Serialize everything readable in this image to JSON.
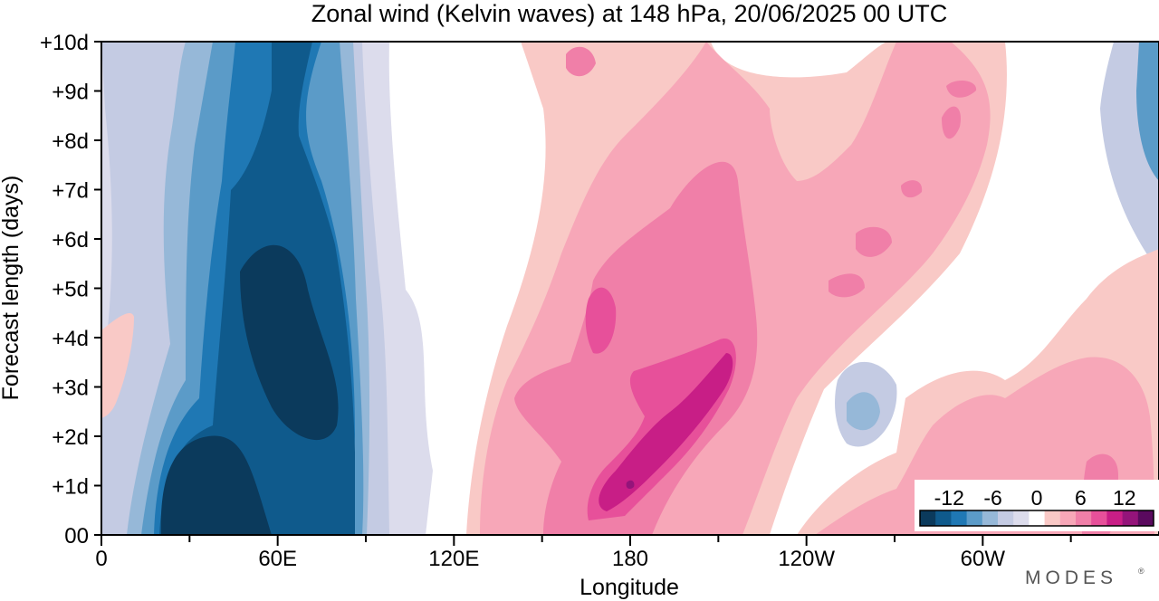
{
  "chart_data": {
    "type": "heatmap",
    "title": "Zonal wind (Kelvin waves) at 148 hPa,  20/06/2025  00 UTC",
    "xlabel": "Longitude",
    "ylabel": "Forecast length (days)",
    "x_ticks": [
      "0",
      "60E",
      "120E",
      "180",
      "120W",
      "60W"
    ],
    "y_ticks": [
      "00",
      "+1d",
      "+2d",
      "+3d",
      "+4d",
      "+5d",
      "+6d",
      "+7d",
      "+8d",
      "+9d",
      "+10d"
    ],
    "xlim_deg": [
      0,
      360
    ],
    "ylim_days": [
      0,
      10
    ],
    "colorbar": {
      "ticks": [
        "-12",
        "-6",
        "0",
        "6",
        "12"
      ],
      "levels": [
        -16,
        -14,
        -12,
        -10,
        -8,
        -6,
        -4,
        -2,
        2,
        4,
        6,
        8,
        10,
        12,
        14,
        16
      ],
      "colors": [
        "#0b3a5c",
        "#0f5a8c",
        "#1f78b4",
        "#5b9bc8",
        "#96b8d8",
        "#c4cbe3",
        "#dcdcec",
        "#ffffff",
        "#f9c9c6",
        "#f7a7b8",
        "#f07fa8",
        "#e7509a",
        "#c81e86",
        "#94147a",
        "#5a0a5e"
      ]
    },
    "features": [
      {
        "name": "negative band",
        "lon_center": 60,
        "day_range": [
          0,
          10
        ],
        "min_value": -14
      },
      {
        "name": "positive band",
        "lon_range": [
          125,
          280
        ],
        "day_range": [
          0,
          10
        ],
        "max_value": 12
      },
      {
        "name": "positive band (secondary)",
        "lon_range": [
          270,
          360
        ],
        "day_range": [
          0,
          4
        ],
        "max_value": 8
      }
    ]
  },
  "watermark": "MODES",
  "watermark_mark": "®"
}
